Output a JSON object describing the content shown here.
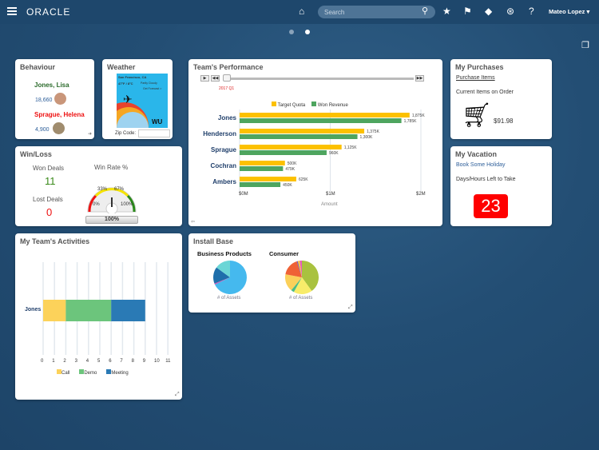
{
  "header": {
    "brand": "ORACLE",
    "search_placeholder": "Search",
    "user": "Mateo Lopez",
    "icons": [
      "menu-icon",
      "home-icon",
      "search-icon",
      "star-icon",
      "flag-icon",
      "bell-icon",
      "accessibility-icon",
      "help-icon"
    ]
  },
  "pager": {
    "pages": 2,
    "active": 2
  },
  "behaviour": {
    "title": "Behaviour",
    "people": [
      {
        "name": "Jones, Lisa",
        "value": "18,660",
        "color": "#2a6a2a"
      },
      {
        "name": "Sprague, Helena",
        "value": "4,900",
        "color": "#ee1111"
      }
    ]
  },
  "weather": {
    "title": "Weather",
    "city": "San Francisco, CA",
    "temp": "47°F / 8°C",
    "condition": "Partly Cloudy",
    "forecast": "Get Forecast >",
    "logo": "WU",
    "zip_label": "Zip Code:",
    "zip_value": ""
  },
  "winloss": {
    "title": "Win/Loss",
    "won_label": "Won Deals",
    "won": "11",
    "lost_label": "Lost Deals",
    "lost": "0",
    "rate_title": "Win Rate %",
    "ticks": [
      "0%",
      "33%",
      "67%",
      "100%"
    ],
    "rate_value": "100%",
    "rate": 100
  },
  "performance": {
    "title": "Team's Performance",
    "period": "2017 Q1",
    "chart_data": {
      "type": "bar",
      "orientation": "horizontal",
      "categories": [
        "Jones",
        "Henderson",
        "Sprague",
        "Cochran",
        "Ambers"
      ],
      "series": [
        {
          "name": "Target Quota",
          "color": "#fcc100",
          "values": [
            1875,
            1375,
            1125,
            500,
            625
          ],
          "labels": [
            "1,875K",
            "1,375K",
            "1,125K",
            "500K",
            "625K"
          ]
        },
        {
          "name": "Won Revenue",
          "color": "#4ea55f",
          "values": [
            1785,
            1300,
            960,
            479,
            450
          ],
          "labels": [
            "1,785K",
            "1,300K",
            "960K",
            "479K",
            "450K"
          ]
        }
      ],
      "xlabel": "Amount",
      "xticks": [
        "$0M",
        "$1M",
        "$2M"
      ],
      "xlim": [
        0,
        2000
      ],
      "units": "K",
      "legend": "top",
      "grid": true
    }
  },
  "purchases": {
    "title": "My Purchases",
    "link": "Purchase Items",
    "label": "Current Items on Order",
    "amount": "$91.98"
  },
  "vacation": {
    "title": "My Vacation",
    "link": "Book Some Holiday",
    "label": "Days/Hours Left to Take",
    "value": "23"
  },
  "activities": {
    "title": "My Team's Activities",
    "chart_data": {
      "type": "bar",
      "orientation": "horizontal",
      "stacked": true,
      "categories": [
        "Jones"
      ],
      "series": [
        {
          "name": "Call",
          "color": "#fcd25a",
          "values": [
            2
          ]
        },
        {
          "name": "Demo",
          "color": "#6cc57c",
          "values": [
            4
          ]
        },
        {
          "name": "Meeting",
          "color": "#2a7ab5",
          "values": [
            3
          ]
        }
      ],
      "xticks": [
        "0",
        "1",
        "2",
        "3",
        "4",
        "5",
        "6",
        "7",
        "8",
        "9",
        "10",
        "11"
      ],
      "xlim": [
        0,
        11
      ],
      "legend": "bottom",
      "grid": true
    }
  },
  "install": {
    "title": "Install Base",
    "chart_data": [
      {
        "type": "pie",
        "title": "Business Products",
        "footer": "# of Assets",
        "values": [
          68,
          1,
          16,
          15
        ],
        "colors": [
          "#45b9ee",
          "#d64db5",
          "#1f6fab",
          "#6bd6d6"
        ]
      },
      {
        "type": "pie",
        "title": "Consumer",
        "footer": "# of Assets",
        "values": [
          40,
          18,
          3,
          17,
          17,
          1,
          2,
          2
        ],
        "colors": [
          "#a9c23f",
          "#f8ec6a",
          "#4cbc86",
          "#fbd05a",
          "#ef6236",
          "#6a55c9",
          "#f7c53a",
          "#e85cc2"
        ]
      }
    ]
  }
}
